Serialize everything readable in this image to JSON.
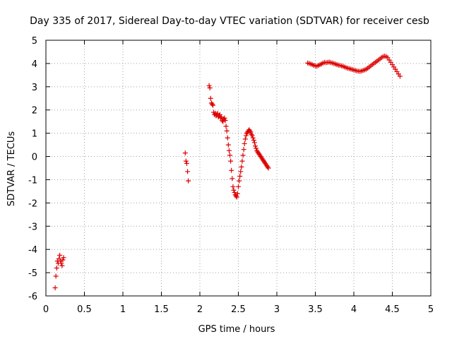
{
  "chart_data": {
    "type": "scatter",
    "title": "Day 335 of 2017, Sidereal Day-to-day VTEC variation (SDTVAR) for receiver cesb",
    "xlabel": "GPS time / hours",
    "ylabel": "SDTVAR / TECUs",
    "xlim": [
      0,
      5
    ],
    "ylim": [
      -6,
      5
    ],
    "x_ticks": [
      0,
      0.5,
      1,
      1.5,
      2,
      2.5,
      3,
      3.5,
      4,
      4.5,
      5
    ],
    "x_tick_labels": [
      "0",
      "0.5",
      "1",
      "1.5",
      "2",
      "2.5",
      "3",
      "3.5",
      "4",
      "4.5",
      "5"
    ],
    "y_ticks": [
      -6,
      -5,
      -4,
      -3,
      -2,
      -1,
      0,
      1,
      2,
      3,
      4,
      5
    ],
    "y_tick_labels": [
      "-6",
      "-5",
      "-4",
      "-3",
      "-2",
      "-1",
      "0",
      "1",
      "2",
      "3",
      "4",
      "5"
    ],
    "grid": true,
    "marker": "+",
    "marker_color": "#dd0000",
    "series": [
      {
        "name": "cesb",
        "x": [
          0.12,
          0.13,
          0.14,
          0.15,
          0.16,
          0.17,
          0.18,
          0.19,
          0.2,
          0.21,
          0.22,
          0.23,
          1.81,
          1.82,
          1.83,
          1.84,
          1.85,
          2.12,
          2.13,
          2.14,
          2.15,
          2.16,
          2.17,
          2.18,
          2.19,
          2.2,
          2.21,
          2.22,
          2.23,
          2.24,
          2.25,
          2.26,
          2.27,
          2.28,
          2.29,
          2.3,
          2.31,
          2.32,
          2.33,
          2.34,
          2.35,
          2.36,
          2.37,
          2.38,
          2.39,
          2.4,
          2.41,
          2.42,
          2.43,
          2.44,
          2.45,
          2.46,
          2.47,
          2.48,
          2.49,
          2.5,
          2.51,
          2.52,
          2.53,
          2.54,
          2.55,
          2.56,
          2.57,
          2.58,
          2.59,
          2.6,
          2.61,
          2.62,
          2.63,
          2.64,
          2.65,
          2.66,
          2.67,
          2.68,
          2.69,
          2.7,
          2.71,
          2.72,
          2.73,
          2.74,
          2.75,
          2.76,
          2.77,
          2.78,
          2.79,
          2.8,
          2.81,
          2.82,
          2.83,
          2.84,
          2.85,
          2.86,
          2.87,
          2.88,
          2.89,
          3.4,
          3.42,
          3.44,
          3.46,
          3.48,
          3.5,
          3.52,
          3.54,
          3.56,
          3.58,
          3.6,
          3.62,
          3.64,
          3.66,
          3.68,
          3.7,
          3.72,
          3.74,
          3.76,
          3.78,
          3.8,
          3.82,
          3.84,
          3.86,
          3.88,
          3.9,
          3.92,
          3.94,
          3.96,
          3.98,
          4.0,
          4.02,
          4.04,
          4.06,
          4.08,
          4.1,
          4.12,
          4.14,
          4.16,
          4.18,
          4.2,
          4.22,
          4.24,
          4.26,
          4.28,
          4.3,
          4.32,
          4.34,
          4.36,
          4.38,
          4.4,
          4.42,
          4.44,
          4.46,
          4.48,
          4.5,
          4.52,
          4.54,
          4.56,
          4.58,
          4.6
        ],
        "y": [
          -5.65,
          -5.15,
          -4.8,
          -4.5,
          -4.6,
          -4.4,
          -4.25,
          -4.5,
          -4.6,
          -4.7,
          -4.45,
          -4.35,
          0.15,
          -0.2,
          -0.3,
          -0.65,
          -1.05,
          3.05,
          2.95,
          2.5,
          2.3,
          2.25,
          2.2,
          1.9,
          1.8,
          1.85,
          1.75,
          1.8,
          1.85,
          1.7,
          1.75,
          1.8,
          1.65,
          1.7,
          1.55,
          1.5,
          1.6,
          1.65,
          1.55,
          1.3,
          1.1,
          0.8,
          0.5,
          0.25,
          0.05,
          -0.2,
          -0.6,
          -0.95,
          -1.3,
          -1.45,
          -1.55,
          -1.65,
          -1.7,
          -1.75,
          -1.6,
          -1.3,
          -1.05,
          -0.85,
          -0.65,
          -0.45,
          -0.2,
          0.05,
          0.3,
          0.55,
          0.75,
          0.9,
          1.0,
          1.05,
          1.1,
          1.15,
          1.1,
          1.05,
          0.95,
          0.9,
          0.8,
          0.7,
          0.6,
          0.45,
          0.35,
          0.25,
          0.2,
          0.15,
          0.1,
          0.05,
          0.0,
          -0.05,
          -0.1,
          -0.15,
          -0.2,
          -0.25,
          -0.3,
          -0.35,
          -0.4,
          -0.45,
          -0.5,
          4.02,
          4.0,
          3.98,
          3.95,
          3.92,
          3.9,
          3.88,
          3.92,
          3.95,
          3.98,
          4.02,
          4.05,
          4.03,
          4.05,
          4.06,
          4.04,
          4.02,
          4.0,
          3.98,
          3.95,
          3.93,
          3.92,
          3.9,
          3.88,
          3.85,
          3.82,
          3.8,
          3.78,
          3.76,
          3.74,
          3.72,
          3.7,
          3.68,
          3.67,
          3.66,
          3.68,
          3.7,
          3.72,
          3.75,
          3.8,
          3.85,
          3.9,
          3.95,
          4.0,
          4.05,
          4.1,
          4.15,
          4.2,
          4.25,
          4.3,
          4.32,
          4.3,
          4.25,
          4.15,
          4.05,
          3.95,
          3.85,
          3.75,
          3.65,
          3.55,
          3.45
        ]
      }
    ]
  }
}
